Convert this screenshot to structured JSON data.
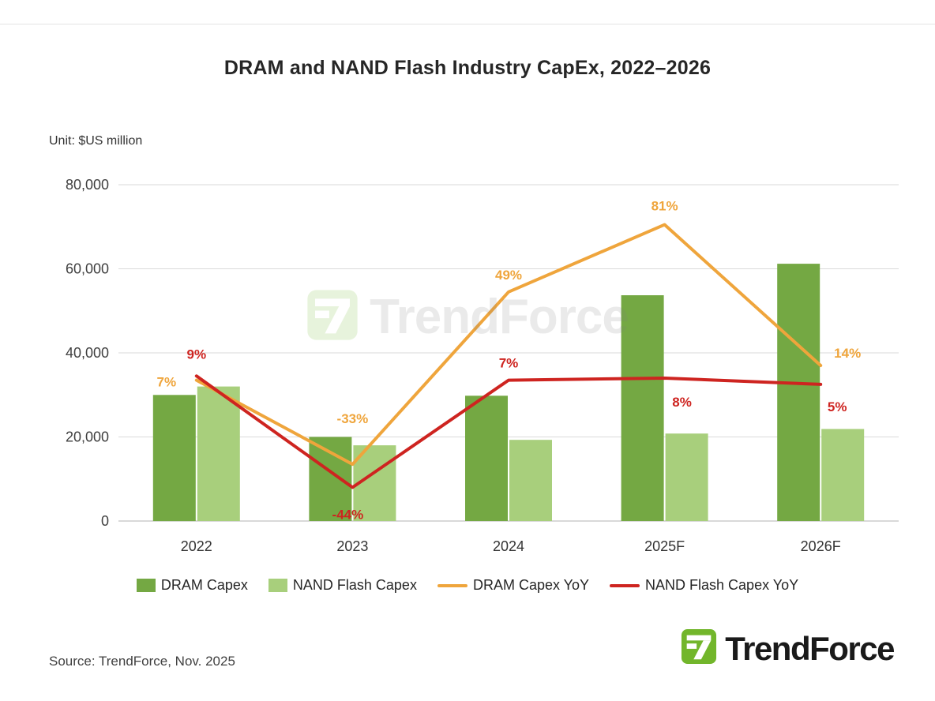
{
  "title": "DRAM and NAND Flash Industry CapEx, 2022–2026",
  "unit_label": "Unit: $US million",
  "source": "Source: TrendForce, Nov. 2025",
  "logo_text": "TrendForce",
  "watermark_text": "TrendForce",
  "colors": {
    "dram_bar": "#74A843",
    "nand_bar": "#A8CF7C",
    "dram_line": "#EFA53C",
    "nand_line": "#CE2420",
    "logo_green": "#72B62B",
    "grid": "#DADADA",
    "axis": "#B3B3B3"
  },
  "chart_data": {
    "type": "bar+line",
    "title": "DRAM and NAND Flash Industry CapEx, 2022–2026",
    "unit": "$US million",
    "categories": [
      "2022",
      "2023",
      "2024",
      "2025F",
      "2026F"
    ],
    "bar_series": [
      {
        "name": "DRAM Capex",
        "color_key": "dram_bar",
        "values": [
          30000,
          20000,
          29800,
          53700,
          61200
        ]
      },
      {
        "name": "NAND Flash Capex",
        "color_key": "nand_bar",
        "values": [
          32000,
          18000,
          19300,
          20800,
          21900
        ]
      }
    ],
    "line_series": [
      {
        "name": "DRAM Capex YoY",
        "color_key": "dram_line",
        "values_pct": [
          7,
          -33,
          49,
          81,
          14
        ],
        "labels": [
          "7%",
          "-33%",
          "49%",
          "81%",
          "14%"
        ]
      },
      {
        "name": "NAND Flash Capex YoY",
        "color_key": "nand_line",
        "values_pct": [
          9,
          -44,
          7,
          8,
          5
        ],
        "labels": [
          "9%",
          "-44%",
          "7%",
          "8%",
          "5%"
        ]
      }
    ],
    "y_axis": {
      "min": 0,
      "max": 80000,
      "ticks": [
        0,
        20000,
        40000,
        60000,
        80000
      ],
      "tick_labels": [
        "0",
        "20,000",
        "40,000",
        "60,000",
        "80,000"
      ]
    },
    "y2_axis": {
      "min": -60,
      "max": 100,
      "visible": false
    },
    "grid": true,
    "legend_position": "bottom"
  }
}
